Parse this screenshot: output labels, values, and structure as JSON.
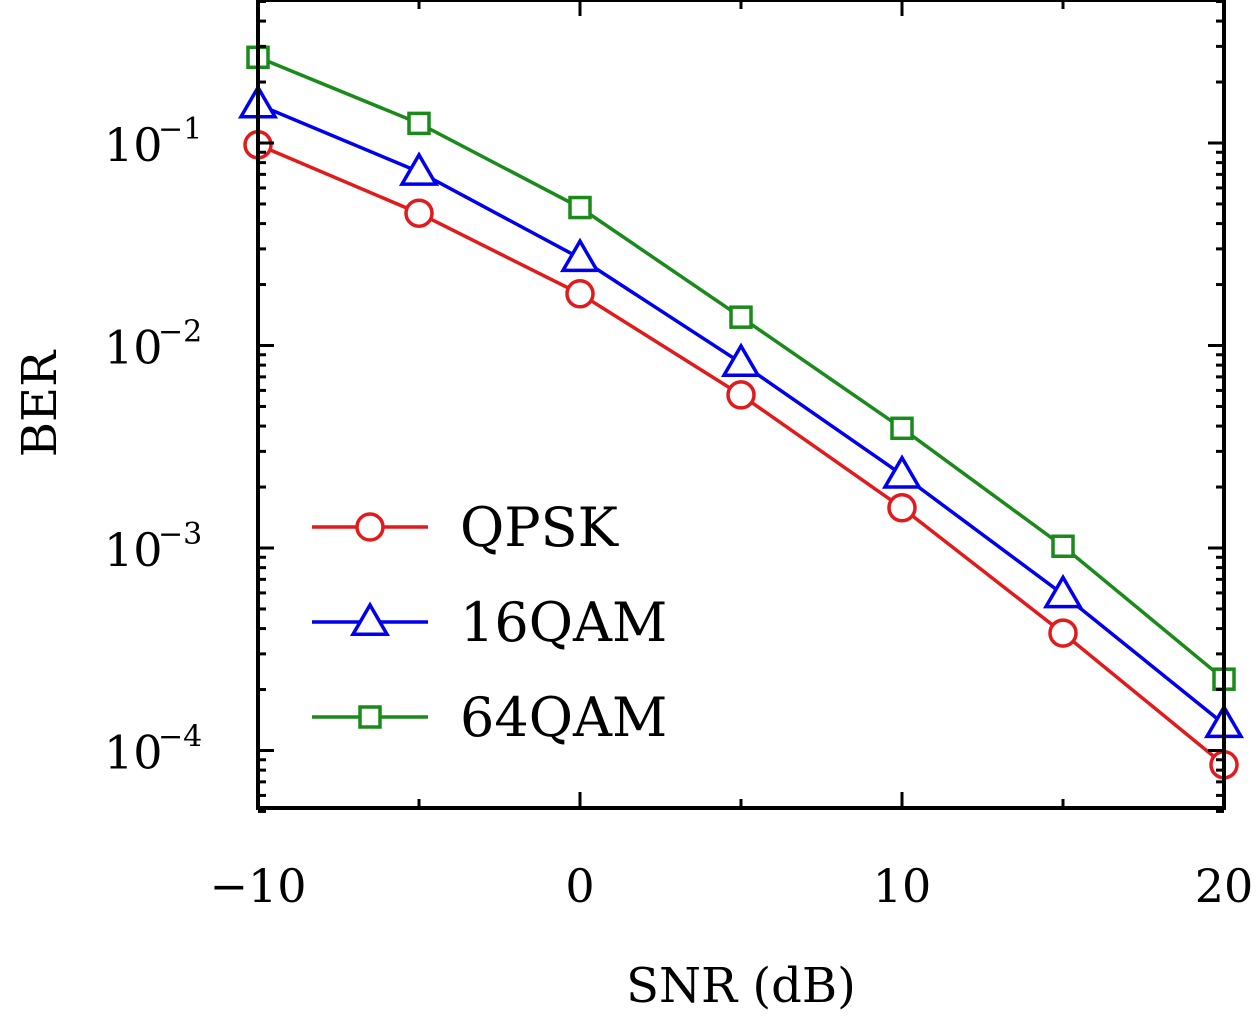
{
  "chart_data": {
    "type": "line",
    "xlabel": "SNR (dB)",
    "ylabel": "BER",
    "yscale": "log",
    "xlim": [
      -10,
      20
    ],
    "ylim": [
      5e-05,
      0.5
    ],
    "xticks": [
      -10,
      0,
      10,
      20
    ],
    "xtick_labels": [
      "−10",
      "0",
      "10",
      "20"
    ],
    "yticks": [
      0.1,
      0.01,
      0.001,
      0.0001
    ],
    "ytick_bases": [
      "10",
      "10",
      "10",
      "10"
    ],
    "ytick_exponents": [
      "−1",
      "−2",
      "−3",
      "−4"
    ],
    "grid": false,
    "legend_position": "bottom-left",
    "x": [
      -10,
      -5,
      0,
      5,
      10,
      15,
      20
    ],
    "series": [
      {
        "name": "QPSK",
        "color": "#e31a1c",
        "marker": "circle",
        "values": [
          0.098,
          0.045,
          0.018,
          0.0057,
          0.00158,
          0.00038,
          8.5e-05
        ]
      },
      {
        "name": "16QAM",
        "color": "#0000ee",
        "marker": "triangle",
        "values": [
          0.155,
          0.072,
          0.027,
          0.0082,
          0.0023,
          0.00059,
          0.000135
        ]
      },
      {
        "name": "64QAM",
        "color": "#1a8a1a",
        "marker": "square",
        "values": [
          0.265,
          0.125,
          0.048,
          0.0138,
          0.0039,
          0.00102,
          0.000225
        ]
      }
    ]
  }
}
